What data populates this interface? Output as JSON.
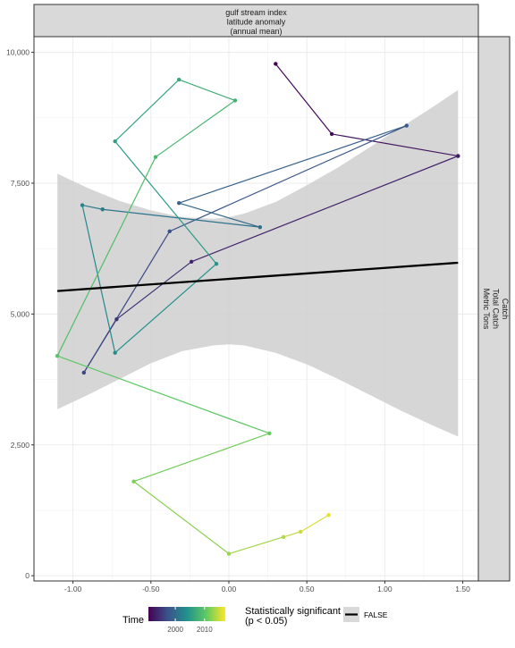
{
  "chart_data": {
    "type": "scatter",
    "facet_top": [
      "gulf stream index",
      "latitude anomaly",
      "(annual mean)"
    ],
    "facet_right": [
      "Catch",
      "Total Catch",
      "Metric Tons"
    ],
    "xlim": [
      -1.25,
      1.6
    ],
    "ylim": [
      -100,
      10300
    ],
    "x_ticks": [
      -1.0,
      -0.5,
      0.0,
      0.5,
      1.0,
      1.5
    ],
    "x_tick_labels": [
      "-1.00",
      "-0.50",
      "0.00",
      "0.50",
      "1.00",
      "1.50"
    ],
    "y_ticks": [
      0,
      2500,
      5000,
      7500,
      10000
    ],
    "y_tick_labels": [
      "0",
      "2,500",
      "5,000",
      "7,500",
      "10,000"
    ],
    "grid": true,
    "series": [
      {
        "points": [
          {
            "x": 0.3,
            "y": 9780,
            "t": 0.0
          },
          {
            "x": 0.66,
            "y": 8440,
            "t": 0.04
          },
          {
            "x": 1.47,
            "y": 8020,
            "t": 0.08
          },
          {
            "x": -0.24,
            "y": 6000,
            "t": 0.12
          },
          {
            "x": -0.72,
            "y": 4900,
            "t": 0.16
          },
          {
            "x": -0.93,
            "y": 3880,
            "t": 0.2
          },
          {
            "x": -0.38,
            "y": 6580,
            "t": 0.24
          },
          {
            "x": 1.14,
            "y": 8600,
            "t": 0.28
          },
          {
            "x": -0.32,
            "y": 7120,
            "t": 0.32
          },
          {
            "x": 0.2,
            "y": 6660,
            "t": 0.36
          },
          {
            "x": -0.81,
            "y": 7000,
            "t": 0.4
          },
          {
            "x": -0.94,
            "y": 7080,
            "t": 0.44
          },
          {
            "x": -0.73,
            "y": 4260,
            "t": 0.48
          },
          {
            "x": -0.08,
            "y": 5960,
            "t": 0.52
          },
          {
            "x": -0.73,
            "y": 8300,
            "t": 0.56
          },
          {
            "x": -0.32,
            "y": 9480,
            "t": 0.6
          },
          {
            "x": 0.04,
            "y": 9080,
            "t": 0.64
          },
          {
            "x": -0.47,
            "y": 8000,
            "t": 0.68
          },
          {
            "x": -1.1,
            "y": 4200,
            "t": 0.72
          },
          {
            "x": 0.26,
            "y": 2720,
            "t": 0.76
          },
          {
            "x": -0.61,
            "y": 1800,
            "t": 0.8
          },
          {
            "x": 0.0,
            "y": 420,
            "t": 0.84
          },
          {
            "x": 0.35,
            "y": 740,
            "t": 0.88
          },
          {
            "x": 0.46,
            "y": 840,
            "t": 0.92
          },
          {
            "x": 0.64,
            "y": 1160,
            "t": 0.96
          }
        ]
      }
    ],
    "trend": {
      "line": [
        [
          -1.1,
          5440
        ],
        [
          1.47,
          5980
        ]
      ],
      "ribbon_x": [
        -1.1,
        -0.9,
        -0.7,
        -0.5,
        -0.3,
        -0.1,
        0.0,
        0.1,
        0.3,
        0.5,
        0.7,
        0.9,
        1.1,
        1.3,
        1.47
      ],
      "ribbon_upper": [
        7680,
        7400,
        7160,
        6980,
        6850,
        6820,
        6850,
        6920,
        7140,
        7460,
        7800,
        8180,
        8560,
        8940,
        9280
      ],
      "ribbon_lower": [
        3180,
        3460,
        3760,
        4060,
        4290,
        4400,
        4420,
        4400,
        4260,
        4040,
        3760,
        3460,
        3160,
        2880,
        2660
      ]
    },
    "legend_time": {
      "title": "Time",
      "tick_labels": [
        "2000",
        "2010"
      ],
      "tick_positions": [
        0.35,
        0.73
      ],
      "colors": [
        "#440154",
        "#3b528b",
        "#21918c",
        "#5ec962",
        "#fde725"
      ]
    },
    "legend_sig": {
      "title": [
        "Statistically significant",
        "(p < 0.05)"
      ],
      "label": "FALSE"
    },
    "legend_placement": "bottom"
  }
}
